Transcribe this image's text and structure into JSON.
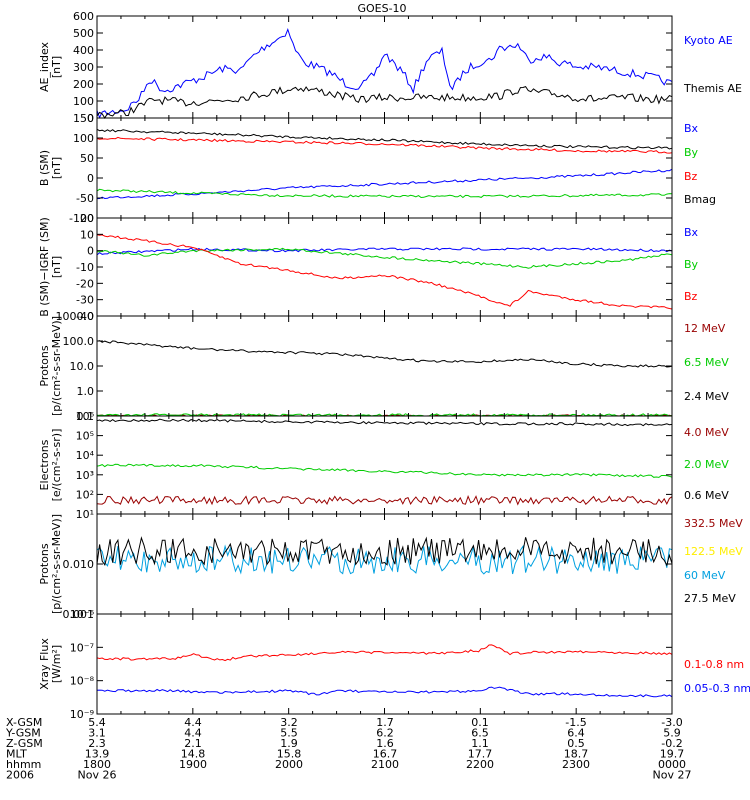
{
  "title": "GOES-10",
  "colors": {
    "black": "#000000",
    "blue": "#0000ff",
    "red": "#ff0000",
    "green": "#00cc00",
    "darkred": "#990000",
    "yellow": "#ffee00",
    "cyan": "#00a0e0"
  },
  "chart_data": [
    {
      "type": "line",
      "id": "ae",
      "ylabel": [
        "AE_index",
        "[nT]"
      ],
      "ylim": [
        0,
        600
      ],
      "log": false,
      "yticks": [
        {
          "v": 0,
          "t": "0"
        },
        {
          "v": 100,
          "t": "100"
        },
        {
          "v": 200,
          "t": "200"
        },
        {
          "v": 300,
          "t": "300"
        },
        {
          "v": 400,
          "t": "400"
        },
        {
          "v": 500,
          "t": "500"
        },
        {
          "v": 600,
          "t": "600"
        }
      ],
      "series": [
        {
          "name": "Kyoto AE",
          "color": "#0000ff",
          "x": [
            18.0,
            18.3,
            18.45,
            18.55,
            18.7,
            18.9,
            19.1,
            19.3,
            19.5,
            19.6,
            19.75,
            19.9,
            20.0,
            20.05,
            20.15,
            20.3,
            20.45,
            20.6,
            20.75,
            20.9,
            21.0,
            21.1,
            21.2,
            21.3,
            21.45,
            21.6,
            21.7,
            21.8,
            21.9,
            22.0,
            22.1,
            22.2,
            22.3,
            22.4,
            22.5,
            22.6,
            22.7,
            22.8,
            22.9,
            23.0,
            23.2,
            23.4,
            23.6,
            23.8,
            24.0
          ],
          "y": [
            20,
            50,
            120,
            230,
            160,
            200,
            240,
            290,
            280,
            350,
            420,
            470,
            520,
            420,
            330,
            300,
            260,
            200,
            180,
            260,
            380,
            320,
            260,
            170,
            350,
            390,
            160,
            250,
            300,
            330,
            340,
            410,
            420,
            430,
            340,
            360,
            360,
            330,
            320,
            300,
            300,
            280,
            260,
            240,
            200
          ]
        },
        {
          "name": "Themis AE",
          "color": "#000000",
          "x": [
            18.0,
            18.3,
            18.6,
            18.9,
            19.2,
            19.5,
            19.8,
            20.1,
            20.4,
            20.7,
            21.0,
            21.3,
            21.6,
            21.9,
            22.2,
            22.4,
            22.6,
            22.8,
            23.0,
            23.2,
            23.5,
            23.8,
            24.0
          ],
          "y": [
            20,
            30,
            110,
            90,
            100,
            120,
            150,
            180,
            150,
            110,
            120,
            120,
            120,
            120,
            130,
            170,
            150,
            140,
            120,
            110,
            120,
            110,
            110
          ]
        }
      ]
    },
    {
      "type": "line",
      "id": "bsm",
      "ylabel": [
        "B (SM)",
        "[nT]"
      ],
      "ylim": [
        -100,
        150
      ],
      "log": false,
      "yticks": [
        {
          "v": -100,
          "t": "-100"
        },
        {
          "v": -50,
          "t": "-50"
        },
        {
          "v": 0,
          "t": "0"
        },
        {
          "v": 50,
          "t": "50"
        },
        {
          "v": 100,
          "t": "100"
        },
        {
          "v": 150,
          "t": "150"
        }
      ],
      "series": [
        {
          "name": "Bx",
          "color": "#0000ff",
          "x": [
            18,
            19,
            20,
            21,
            22,
            23,
            24
          ],
          "y": [
            -50,
            -40,
            -25,
            -15,
            -5,
            5,
            20
          ]
        },
        {
          "name": "By",
          "color": "#00cc00",
          "x": [
            18,
            19,
            20,
            21,
            22,
            23,
            24
          ],
          "y": [
            -30,
            -38,
            -44,
            -46,
            -46,
            -44,
            -42
          ]
        },
        {
          "name": "Bz",
          "color": "#ff0000",
          "x": [
            18,
            19,
            20,
            21,
            22,
            23,
            24
          ],
          "y": [
            100,
            95,
            90,
            85,
            75,
            68,
            65
          ]
        },
        {
          "name": "Bmag",
          "color": "#000000",
          "x": [
            18,
            19,
            20,
            21,
            22,
            23,
            24
          ],
          "y": [
            120,
            112,
            103,
            95,
            85,
            78,
            75
          ]
        }
      ]
    },
    {
      "type": "line",
      "id": "bdiff",
      "ylabel": [
        "B (SM)−IGRF (SM)",
        "[nT]"
      ],
      "ylim": [
        -40,
        20
      ],
      "log": false,
      "yticks": [
        {
          "v": -40,
          "t": "-40"
        },
        {
          "v": -30,
          "t": "-30"
        },
        {
          "v": -20,
          "t": "-20"
        },
        {
          "v": -10,
          "t": "-10"
        },
        {
          "v": 0,
          "t": "0"
        },
        {
          "v": 10,
          "t": "10"
        },
        {
          "v": 20,
          "t": "20"
        }
      ],
      "series": [
        {
          "name": "Bx",
          "color": "#0000ff",
          "x": [
            18,
            19,
            20,
            21,
            22,
            23,
            24
          ],
          "y": [
            -2,
            1,
            0,
            1,
            1,
            1,
            0
          ]
        },
        {
          "name": "By",
          "color": "#00cc00",
          "x": [
            18,
            18.5,
            19,
            20,
            21,
            21.5,
            22,
            22.5,
            23,
            23.5,
            24
          ],
          "y": [
            0,
            -3,
            0,
            1,
            -4,
            -6,
            -8,
            -10,
            -8,
            -6,
            -2
          ]
        },
        {
          "name": "Bz",
          "color": "#ff0000",
          "x": [
            18,
            18.5,
            19,
            19.5,
            20,
            20.5,
            21,
            21.5,
            22,
            22.3,
            22.5,
            23,
            23.5,
            24
          ],
          "y": [
            10,
            6,
            2,
            -8,
            -12,
            -17,
            -15,
            -20,
            -28,
            -34,
            -25,
            -30,
            -34,
            -35
          ]
        }
      ]
    },
    {
      "type": "line",
      "id": "protons",
      "ylabel": [
        "Protons",
        "[p/(cm²-s-sr-MeV)]"
      ],
      "ylim": [
        0.1,
        1000
      ],
      "log": true,
      "yticks": [
        {
          "v": 0.1,
          "t": "0.1"
        },
        {
          "v": 1,
          "t": "1.0"
        },
        {
          "v": 10,
          "t": "10.0"
        },
        {
          "v": 100,
          "t": "100.0"
        },
        {
          "v": 1000,
          "t": "1000.0"
        }
      ],
      "series": [
        {
          "name": "12 MeV",
          "color": "#990000",
          "x": [
            18,
            24
          ],
          "y": [
            0.1,
            0.1
          ]
        },
        {
          "name": "6.5 MeV",
          "color": "#00cc00",
          "x": [
            18,
            24
          ],
          "y": [
            0.11,
            0.11
          ]
        },
        {
          "name": "2.4 MeV",
          "color": "#000000",
          "x": [
            18,
            18.5,
            19,
            19.5,
            20,
            20.5,
            21,
            21.5,
            22,
            22.5,
            23,
            23.5,
            24
          ],
          "y": [
            100,
            70,
            50,
            40,
            35,
            30,
            20,
            15,
            15,
            18,
            12,
            10,
            10
          ]
        }
      ]
    },
    {
      "type": "line",
      "id": "electrons",
      "ylabel": [
        "Electrons",
        "[e/(cm²-s-sr)]"
      ],
      "ylim": [
        10,
        1000000
      ],
      "log": true,
      "yticks": [
        {
          "v": 10,
          "t": "10¹"
        },
        {
          "v": 100,
          "t": "10²"
        },
        {
          "v": 1000,
          "t": "10³"
        },
        {
          "v": 10000,
          "t": "10⁴"
        },
        {
          "v": 100000,
          "t": "10⁵"
        },
        {
          "v": 1000000,
          "t": "10⁶"
        }
      ],
      "series": [
        {
          "name": "4.0 MeV",
          "color": "#990000",
          "x": [
            18,
            24
          ],
          "y": [
            50,
            50
          ]
        },
        {
          "name": "2.0 MeV",
          "color": "#00cc00",
          "x": [
            18,
            19,
            20,
            21,
            22,
            23,
            24
          ],
          "y": [
            3000,
            3000,
            2000,
            1500,
            1000,
            1000,
            800
          ]
        },
        {
          "name": "0.6 MeV",
          "color": "#000000",
          "x": [
            18,
            19,
            20,
            21,
            22,
            23,
            24
          ],
          "y": [
            600000,
            600000,
            500000,
            450000,
            400000,
            400000,
            350000
          ]
        }
      ]
    },
    {
      "type": "line",
      "id": "hiprotons",
      "ylabel": [
        "Protons",
        "[p/(cm²-s-sr-MeV)]"
      ],
      "ylim": [
        0.001,
        0.1
      ],
      "log": true,
      "yticks": [
        {
          "v": 0.001,
          "t": "0.001"
        },
        {
          "v": 0.01,
          "t": "0.010"
        }
      ],
      "series": [
        {
          "name": "332.5 MeV",
          "color": "#990000",
          "x": [],
          "y": []
        },
        {
          "name": "122.5 MeV",
          "color": "#ffee00",
          "x": [],
          "y": []
        },
        {
          "name": "60 MeV",
          "color": "#00a0e0",
          "x": [
            18,
            24
          ],
          "y": [
            0.012,
            0.012
          ]
        },
        {
          "name": "27.5 MeV",
          "color": "#000000",
          "x": [
            18,
            24
          ],
          "y": [
            0.018,
            0.018
          ]
        }
      ]
    },
    {
      "type": "line",
      "id": "xray",
      "ylabel": [
        "Xray Flux",
        "[W/m²]"
      ],
      "ylim": [
        1e-09,
        1e-06
      ],
      "log": true,
      "yticks": [
        {
          "v": 1e-09,
          "t": "10⁻⁹"
        },
        {
          "v": 1e-08,
          "t": "10⁻⁸"
        },
        {
          "v": 1e-07,
          "t": "10⁻⁷"
        },
        {
          "v": 1e-06,
          "t": "10⁻⁶"
        }
      ],
      "series": [
        {
          "name": "0.1-0.8 nm",
          "color": "#ff0000",
          "x": [
            18,
            18.8,
            19,
            19.3,
            19.6,
            20,
            20.5,
            21,
            21.5,
            22,
            22.1,
            22.3,
            22.5,
            23,
            23.5,
            24
          ],
          "y": [
            4.5e-08,
            4.5e-08,
            6e-08,
            4e-08,
            5.5e-08,
            6e-08,
            7e-08,
            7e-08,
            6.5e-08,
            8e-08,
            1.2e-07,
            6.5e-08,
            7e-08,
            7.5e-08,
            7e-08,
            6.5e-08
          ]
        },
        {
          "name": "0.05-0.3 nm",
          "color": "#0000ff",
          "x": [
            18,
            18.8,
            19,
            19.5,
            20,
            20.3,
            20.5,
            21,
            21.5,
            22,
            22.1,
            22.5,
            23,
            23.5,
            24
          ],
          "y": [
            5e-09,
            5e-09,
            4.5e-09,
            4.5e-09,
            5e-09,
            3.8e-09,
            5e-09,
            4.5e-09,
            4.5e-09,
            5e-09,
            6.5e-09,
            4e-09,
            4e-09,
            3.5e-09,
            3.5e-09
          ]
        }
      ]
    }
  ],
  "footer": {
    "rows": [
      {
        "label": "X-GSM",
        "values": [
          "5.4",
          "4.4",
          "3.2",
          "1.7",
          "0.1",
          "-1.5",
          "-3.0"
        ]
      },
      {
        "label": "Y-GSM",
        "values": [
          "3.1",
          "4.4",
          "5.5",
          "6.2",
          "6.5",
          "6.4",
          "5.9"
        ]
      },
      {
        "label": "Z-GSM",
        "values": [
          "2.3",
          "2.1",
          "1.9",
          "1.6",
          "1.1",
          "0.5",
          "-0.2"
        ]
      },
      {
        "label": "MLT",
        "values": [
          "13.9",
          "14.8",
          "15.8",
          "16.7",
          "17.7",
          "18.7",
          "19.7"
        ]
      },
      {
        "label": "hhmm",
        "values": [
          "1800",
          "1900",
          "2000",
          "2100",
          "2200",
          "2300",
          "0000"
        ]
      },
      {
        "label": "2006",
        "values": [
          "Nov 26",
          "",
          "",
          "",
          "",
          "",
          "Nov 27"
        ]
      }
    ]
  }
}
